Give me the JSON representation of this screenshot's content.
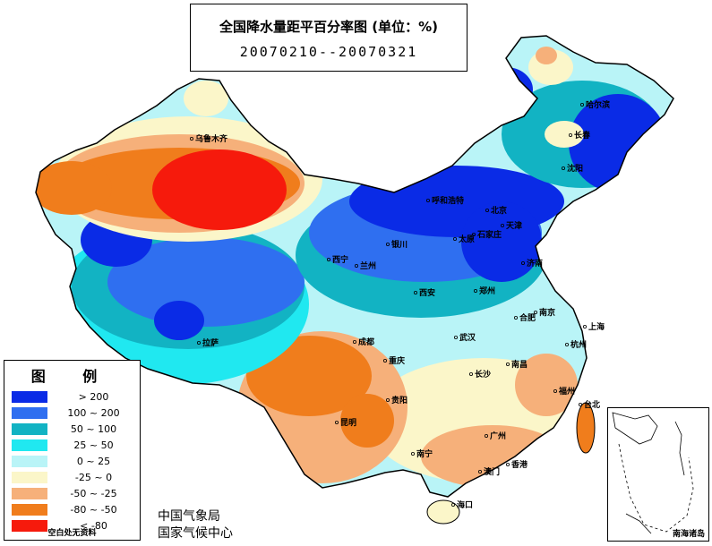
{
  "title": "全国降水量距平百分率图 (单位：%)",
  "period": "20070210--20070321",
  "legend": {
    "title": "图 例",
    "items": [
      {
        "label": "> 200",
        "color": "#0a2be6"
      },
      {
        "label": "100 ~ 200",
        "color": "#2f6ff0"
      },
      {
        "label": "50 ~ 100",
        "color": "#12b3c3"
      },
      {
        "label": "25 ~ 50",
        "color": "#20e8f0"
      },
      {
        "label": "0 ~ 25",
        "color": "#b9f4f7"
      },
      {
        "label": "-25 ~ 0",
        "color": "#fbf6c9"
      },
      {
        "label": "-50 ~ -25",
        "color": "#f6b07a"
      },
      {
        "label": "-80 ~ -50",
        "color": "#f07d1c"
      },
      {
        "label": "< -80",
        "color": "#f61a0c"
      }
    ],
    "note": "空白处无资料"
  },
  "agencies": [
    "中国气象局",
    "国家气候中心"
  ],
  "inset_label": "南海诸岛",
  "cities": [
    "乌鲁木齐",
    "哈尔滨",
    "长春",
    "沈阳",
    "呼和浩特",
    "北京",
    "天津",
    "石家庄",
    "太原",
    "济南",
    "银川",
    "西宁",
    "兰州",
    "西安",
    "郑州",
    "合肥",
    "南京",
    "上海",
    "武汉",
    "杭州",
    "成都",
    "重庆",
    "拉萨",
    "长沙",
    "南昌",
    "福州",
    "台北",
    "贵阳",
    "昆明",
    "南宁",
    "广州",
    "香港",
    "澳门",
    "海口"
  ]
}
